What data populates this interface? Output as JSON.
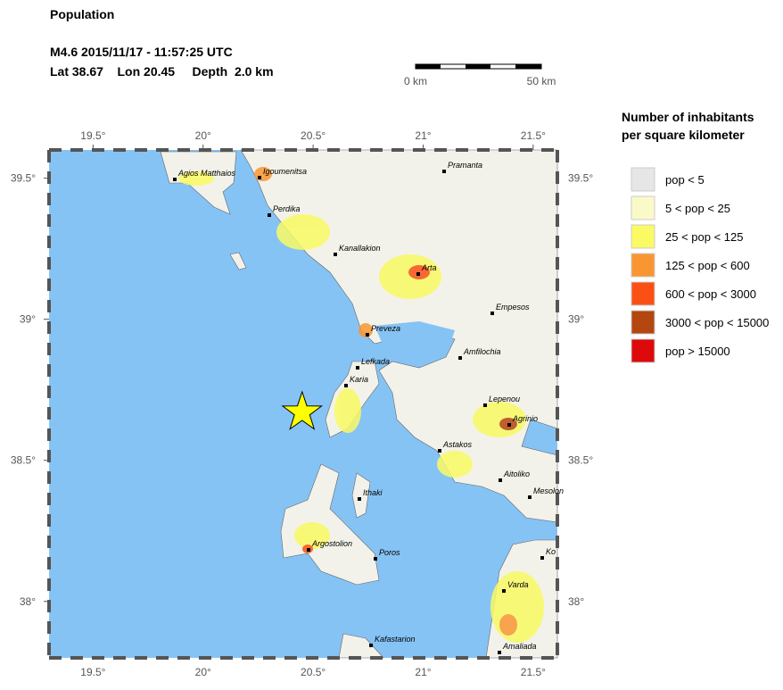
{
  "header": {
    "title": "Population",
    "event": "M4.6  2015/11/17 - 11:57:25 UTC",
    "location": "Lat 38.67    Lon 20.45     Depth  2.0 km"
  },
  "scale_bar": {
    "start": "0 km",
    "end": "50 km"
  },
  "legend": {
    "title": "Number of inhabitants per square kilometer",
    "items": [
      {
        "label": "pop < 5",
        "color": "#e6e6e6"
      },
      {
        "label": "5 < pop < 25",
        "color": "#fafac8"
      },
      {
        "label": "25 < pop < 125",
        "color": "#fafa64"
      },
      {
        "label": "125 < pop < 600",
        "color": "#fa9632"
      },
      {
        "label": "600 < pop < 3000",
        "color": "#fa5014"
      },
      {
        "label": "3000 < pop < 15000",
        "color": "#b4460f"
      },
      {
        "label": "pop > 15000",
        "color": "#dc0a0a"
      }
    ]
  },
  "map": {
    "xlim": [
      19.3,
      21.61
    ],
    "ylim": [
      37.8,
      39.6
    ],
    "xticks": [
      {
        "value": 19.5,
        "label": "19.5°"
      },
      {
        "value": 20,
        "label": "20°"
      },
      {
        "value": 20.5,
        "label": "20.5°"
      },
      {
        "value": 21,
        "label": "21°"
      },
      {
        "value": 21.5,
        "label": "21.5°"
      }
    ],
    "yticks": [
      {
        "value": 38,
        "label": "38°"
      },
      {
        "value": 38.5,
        "label": "38.5°"
      },
      {
        "value": 39,
        "label": "39°"
      },
      {
        "value": 39.5,
        "label": "39.5°"
      }
    ],
    "epicenter": {
      "lon": 20.45,
      "lat": 38.67
    },
    "cities": [
      "Agios Matthaios",
      "Igoumenitsa",
      "Pramanta",
      "Perdika",
      "Kanallakion",
      "Arta",
      "Empesos",
      "Preveza",
      "Amfilochia",
      "Lefkada",
      "Karia",
      "Lepenou",
      "Agrinio",
      "Astakos",
      "Aitoliko",
      "Mesolon",
      "Ithaki",
      "Argostolion",
      "Poros",
      "Ko",
      "Varda",
      "Kafastarion",
      "Amaliada"
    ]
  }
}
